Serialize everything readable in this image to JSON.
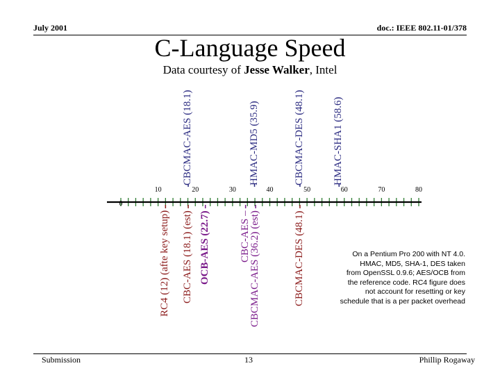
{
  "header": {
    "date": "July 2001",
    "doc": "doc.: IEEE 802.11-01/378"
  },
  "title": "C-Language Speed",
  "subtitle": {
    "prefix": "Data courtesy of ",
    "name": "Jesse Walker",
    "suffix": ", Intel"
  },
  "chart_data": {
    "type": "scatter",
    "axis": {
      "min": 0,
      "max": 80,
      "ticks": [
        0,
        10,
        20,
        30,
        40,
        50,
        60,
        70,
        80
      ]
    },
    "above": [
      {
        "label": "CBCMAC-AES (18.1)",
        "value": 18.1
      },
      {
        "label": "HMAC-MD5 (35.9)",
        "value": 35.9
      },
      {
        "label": "CBCMAC-DES (48.1)",
        "value": 48.1
      },
      {
        "label": "HMAC-SHA1 (58.6)",
        "value": 58.6
      }
    ],
    "below": [
      {
        "label": "RC4 (12) (afte key setup)",
        "value": 12,
        "color": "#8b1a1a"
      },
      {
        "label": "CBC-AES (18.1) (est)",
        "value": 18.1,
        "color": "#8b1a1a"
      },
      {
        "label": "OCB-AES (22.7)",
        "value": 22.7,
        "color": "#7a1a8a",
        "bold": true
      },
      {
        "label": "CBC-AES –",
        "value": 33.5,
        "color": "#7a1a8a"
      },
      {
        "label": "CBCMAC-AES (36.2) (est)",
        "value": 36.2,
        "color": "#7a1a8a"
      },
      {
        "label": "CBCMAC-DES (48.1)",
        "value": 48.1,
        "color": "#8b1a1a"
      }
    ],
    "colors": {
      "above": "#2a2a80",
      "axis": "#000000",
      "ticks": "#2e7d32"
    }
  },
  "note": [
    "On a Pentium Pro 200 with NT 4.0.",
    "HMAC, MD5, SHA-1, DES taken",
    "from OpenSSL 0.9.6; AES/OCB from",
    "the reference code. RC4 figure does",
    "not account for resetting or key",
    "schedule that is a per packet overhead"
  ],
  "footer": {
    "left": "Submission",
    "page": "13",
    "author": "Phillip Rogaway"
  }
}
